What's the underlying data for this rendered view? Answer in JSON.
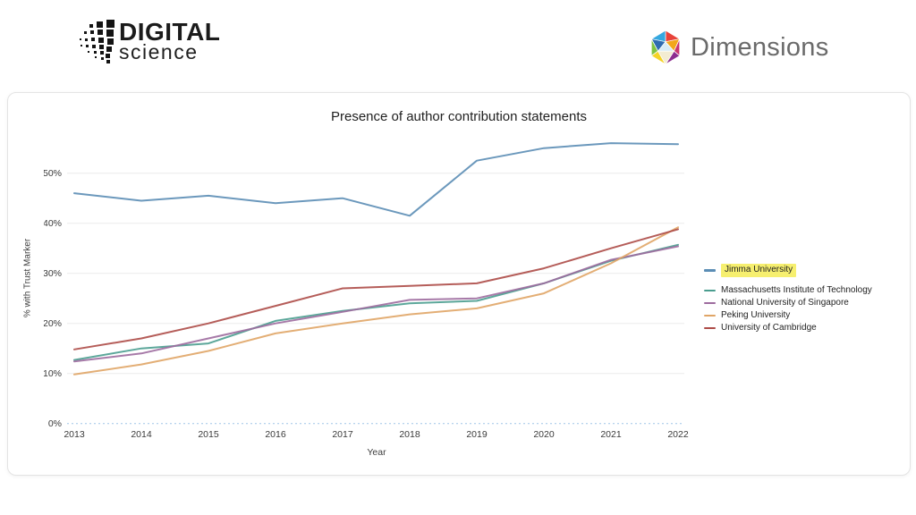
{
  "header": {
    "digital_science": {
      "word1": "DIGITAL",
      "word2": "science"
    },
    "dimensions": {
      "name": "Dimensions"
    }
  },
  "chart_data": {
    "type": "line",
    "title": "Presence of author contribution statements",
    "xlabel": "Year",
    "ylabel": "% with Trust Marker",
    "x": [
      2013,
      2014,
      2015,
      2016,
      2017,
      2018,
      2019,
      2020,
      2021,
      2022
    ],
    "yticks": [
      "0%",
      "10%",
      "20%",
      "30%",
      "40%",
      "50%"
    ],
    "ylim": [
      0,
      58
    ],
    "grid": true,
    "legend_position": "right",
    "zero_line_color": "#9fc5e8",
    "gridline_color": "#ececec",
    "highlight_color": "#f6ef6f",
    "highlighted_series": "Jimma University",
    "series": [
      {
        "name": "Jimma University",
        "color": "#5b8db5",
        "highlighted": true,
        "values": [
          46,
          44.5,
          45.5,
          44,
          45,
          41.5,
          52.5,
          55,
          56,
          55.8
        ]
      },
      {
        "name": "Massachusetts Institute of Technology",
        "color": "#4a9d8f",
        "highlighted": false,
        "values": [
          12.7,
          15,
          16,
          20.5,
          22.5,
          24,
          24.5,
          28,
          32.5,
          35.7
        ]
      },
      {
        "name": "National University of Singapore",
        "color": "#9d6b9e",
        "highlighted": false,
        "values": [
          12.4,
          14,
          17,
          20,
          22.3,
          24.7,
          25,
          28,
          32.7,
          35.4
        ]
      },
      {
        "name": "Peking University",
        "color": "#e0a566",
        "highlighted": false,
        "values": [
          9.8,
          11.8,
          14.5,
          18,
          20,
          21.8,
          23,
          26,
          32,
          39.2
        ]
      },
      {
        "name": "University of Cambridge",
        "color": "#ad4b47",
        "highlighted": false,
        "values": [
          14.8,
          17,
          20,
          23.5,
          27,
          27.5,
          28,
          31,
          35,
          38.8
        ]
      }
    ]
  }
}
